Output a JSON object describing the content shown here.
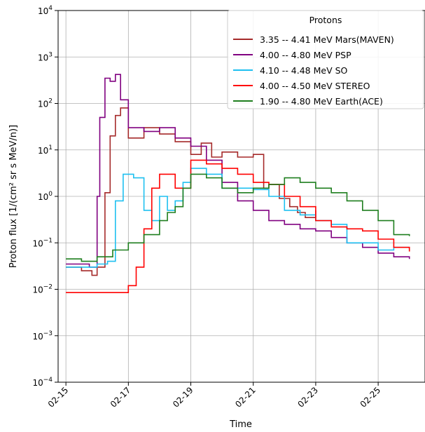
{
  "chart_data": {
    "type": "line",
    "xlabel": "Time",
    "ylabel": "Proton flux [1/(cm² sr s MeV/n)]",
    "yscale": "log",
    "ylim": [
      0.0001,
      10000
    ],
    "xlim": [
      "02-14 18:00",
      "02-26 12:00"
    ],
    "grid": true,
    "legend": {
      "title": "Protons",
      "placement": "top-right"
    },
    "x_ticks": [
      "02-15",
      "02-17",
      "02-19",
      "02-21",
      "02-23",
      "02-25"
    ],
    "y_ticks": [
      {
        "value": 0.0001,
        "exp": "−4"
      },
      {
        "value": 0.001,
        "exp": "−3"
      },
      {
        "value": 0.01,
        "exp": "−2"
      },
      {
        "value": 0.1,
        "exp": "−1"
      },
      {
        "value": 1,
        "exp": "0"
      },
      {
        "value": 10,
        "exp": "1"
      },
      {
        "value": 100,
        "exp": "2"
      },
      {
        "value": 1000,
        "exp": "3"
      },
      {
        "value": 10000,
        "exp": "4"
      }
    ],
    "series": [
      {
        "name": "3.35 -- 4.41 MeV Mars(MAVEN)",
        "color": "#a52a2a",
        "x": [
          "02-15 00:00",
          "02-15 12:00",
          "02-15 20:00",
          "02-16 00:00",
          "02-16 06:00",
          "02-16 10:00",
          "02-16 14:00",
          "02-16 18:00",
          "02-17 00:00",
          "02-17 12:00",
          "02-18 00:00",
          "02-18 12:00",
          "02-19 00:00",
          "02-19 08:00",
          "02-19 16:00",
          "02-20 00:00",
          "02-20 12:00",
          "02-21 00:00",
          "02-21 08:00",
          "02-21 12:00",
          "02-21 20:00",
          "02-22 04:00",
          "02-22 10:00",
          "02-22 16:00",
          "02-23 00:00"
        ],
        "y": [
          0.03,
          0.025,
          0.02,
          0.03,
          1.2,
          20,
          55,
          80,
          18,
          30,
          22,
          15,
          8,
          14,
          7,
          9,
          7,
          8,
          1.5,
          1.8,
          0.9,
          0.6,
          0.45,
          0.35,
          0.5
        ]
      },
      {
        "name": "4.00 -- 4.80 MeV PSP",
        "color": "#800080",
        "x": [
          "02-15 00:00",
          "02-15 18:00",
          "02-15 22:00",
          "02-16 00:00",
          "02-16 02:00",
          "02-16 06:00",
          "02-16 10:00",
          "02-16 14:00",
          "02-16 18:00",
          "02-17 00:00",
          "02-17 12:00",
          "02-18 00:00",
          "02-18 12:00",
          "02-19 00:00",
          "02-19 12:00",
          "02-20 00:00",
          "02-20 12:00",
          "02-21 00:00",
          "02-21 12:00",
          "02-22 00:00",
          "02-22 12:00",
          "02-23 00:00",
          "02-23 12:00",
          "02-24 00:00",
          "02-24 12:00",
          "02-25 00:00",
          "02-25 12:00",
          "02-26 00:00"
        ],
        "y": [
          0.035,
          0.03,
          0.03,
          1,
          50,
          350,
          300,
          420,
          120,
          30,
          25,
          30,
          18,
          12,
          6,
          2,
          0.8,
          0.5,
          0.3,
          0.25,
          0.2,
          0.18,
          0.13,
          0.1,
          0.08,
          0.06,
          0.05,
          0.045
        ]
      },
      {
        "name": "4.10 -- 4.48 MeV SO",
        "color": "#1ec0f0",
        "x": [
          "02-15 00:00",
          "02-15 12:00",
          "02-16 00:00",
          "02-16 08:00",
          "02-16 14:00",
          "02-16 20:00",
          "02-17 04:00",
          "02-17 12:00",
          "02-17 18:00",
          "02-18 00:00",
          "02-18 06:00",
          "02-18 12:00",
          "02-18 18:00",
          "02-19 00:00",
          "02-19 12:00",
          "02-20 00:00",
          "02-20 12:00",
          "02-21 00:00",
          "02-21 12:00",
          "02-22 00:00",
          "02-22 12:00",
          "02-23 00:00",
          "02-23 12:00",
          "02-24 00:00",
          "02-24 12:00",
          "02-25 00:00",
          "02-25 12:00",
          "02-26 00:00"
        ],
        "y": [
          0.03,
          0.03,
          0.035,
          0.04,
          0.8,
          3,
          2.5,
          0.5,
          0.3,
          1,
          0.5,
          0.8,
          2,
          4,
          3,
          1.5,
          1.5,
          1.4,
          1,
          0.5,
          0.4,
          0.3,
          0.25,
          0.1,
          0.1,
          0.07,
          0.08,
          0.07
        ]
      },
      {
        "name": "4.00 -- 4.50 MeV STEREO",
        "color": "#ff0000",
        "x": [
          "02-15 00:00",
          "02-16 00:00",
          "02-16 18:00",
          "02-17 00:00",
          "02-17 06:00",
          "02-17 12:00",
          "02-17 18:00",
          "02-18 00:00",
          "02-18 12:00",
          "02-19 00:00",
          "02-19 12:00",
          "02-20 00:00",
          "02-20 12:00",
          "02-21 00:00",
          "02-21 12:00",
          "02-22 00:00",
          "02-22 12:00",
          "02-23 00:00",
          "02-23 12:00",
          "02-24 00:00",
          "02-24 12:00",
          "02-25 00:00",
          "02-25 12:00",
          "02-26 00:00"
        ],
        "y": [
          0.0085,
          0.0085,
          0.0085,
          0.012,
          0.03,
          0.2,
          1.5,
          3,
          1.5,
          6,
          5,
          4,
          3,
          2,
          1.8,
          1,
          0.6,
          0.3,
          0.22,
          0.2,
          0.18,
          0.12,
          0.08,
          0.065
        ]
      },
      {
        "name": "1.90 -- 4.80 MeV Earth(ACE)",
        "color": "#1e7e1e",
        "x": [
          "02-15 00:00",
          "02-15 12:00",
          "02-16 00:00",
          "02-16 12:00",
          "02-17 00:00",
          "02-17 12:00",
          "02-18 00:00",
          "02-18 06:00",
          "02-18 12:00",
          "02-18 18:00",
          "02-19 00:00",
          "02-19 12:00",
          "02-20 00:00",
          "02-20 12:00",
          "02-21 00:00",
          "02-21 12:00",
          "02-22 00:00",
          "02-22 12:00",
          "02-23 00:00",
          "02-23 12:00",
          "02-24 00:00",
          "02-24 12:00",
          "02-25 00:00",
          "02-25 12:00",
          "02-26 00:00"
        ],
        "y": [
          0.045,
          0.04,
          0.05,
          0.07,
          0.1,
          0.15,
          0.3,
          0.45,
          0.6,
          1.5,
          3,
          2.5,
          1.5,
          1.2,
          1.5,
          1.8,
          2.5,
          2,
          1.5,
          1.2,
          0.8,
          0.5,
          0.3,
          0.15,
          0.14
        ]
      }
    ]
  }
}
